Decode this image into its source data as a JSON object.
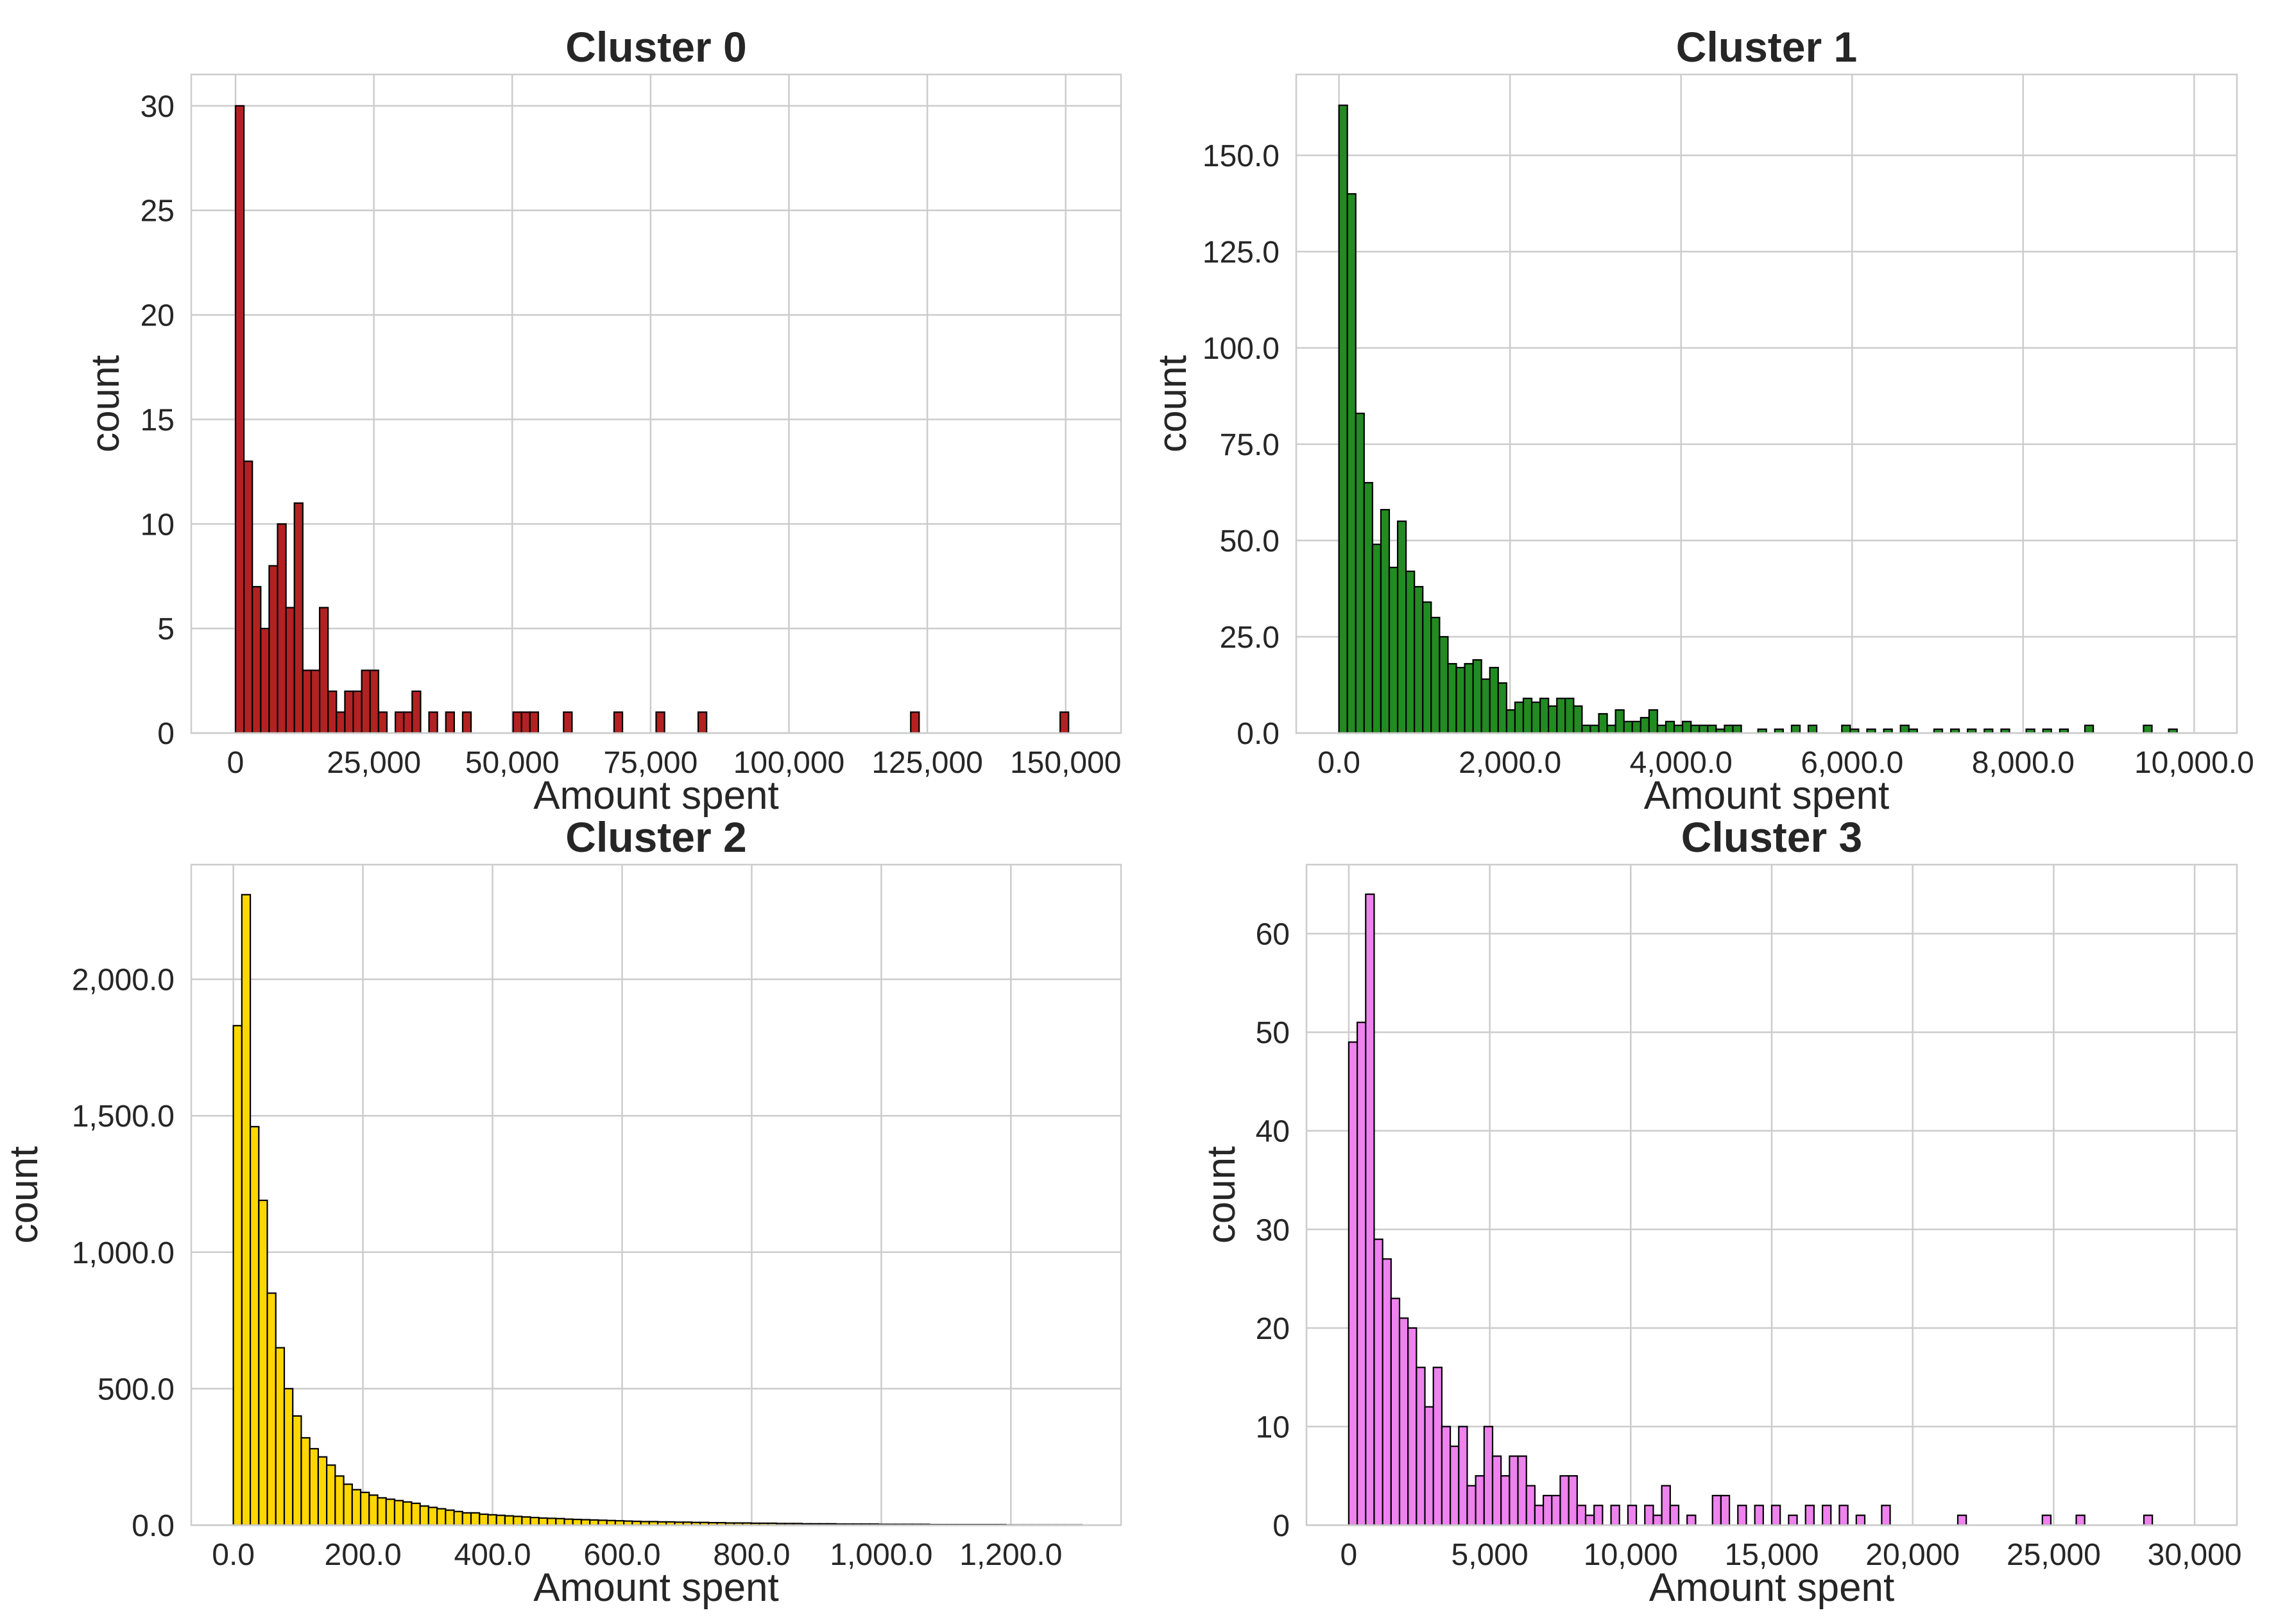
{
  "chart_data": [
    {
      "type": "bar",
      "title": "Cluster 0",
      "xlabel": "Amount spent",
      "ylabel": "count",
      "color": "#b22222",
      "xlim": [
        -8000,
        160000
      ],
      "ylim": [
        0,
        31.5
      ],
      "bin_start": 0,
      "bin_width": 1520,
      "values": [
        30,
        13,
        7,
        5,
        8,
        10,
        6,
        11,
        3,
        3,
        6,
        2,
        1,
        2,
        2,
        3,
        3,
        1,
        0,
        1,
        1,
        2,
        0,
        1,
        0,
        1,
        0,
        1,
        0,
        0,
        0,
        0,
        0,
        1,
        1,
        1,
        0,
        0,
        0,
        0,
        1,
        0,
        0,
        0,
        0,
        0,
        0,
        0,
        0,
        0,
        0,
        0,
        1,
        0,
        0,
        0,
        0,
        0,
        0,
        0,
        0,
        0,
        0,
        0,
        0,
        0,
        0,
        0,
        0,
        0,
        0,
        0,
        0,
        0,
        0,
        0,
        0,
        0,
        0,
        0,
        0,
        0,
        0,
        0,
        0,
        0,
        0,
        0,
        0,
        0,
        0,
        0,
        0,
        0,
        0,
        0,
        0,
        0,
        0,
        1
      ],
      "bars": [
        {
          "x": 0,
          "v": 30
        },
        {
          "x": 1520,
          "v": 13
        },
        {
          "x": 3040,
          "v": 7
        },
        {
          "x": 4560,
          "v": 5
        },
        {
          "x": 6080,
          "v": 8
        },
        {
          "x": 7600,
          "v": 10
        },
        {
          "x": 9120,
          "v": 6
        },
        {
          "x": 10640,
          "v": 11
        },
        {
          "x": 12160,
          "v": 3
        },
        {
          "x": 13680,
          "v": 3
        },
        {
          "x": 15200,
          "v": 6
        },
        {
          "x": 16720,
          "v": 2
        },
        {
          "x": 18240,
          "v": 1
        },
        {
          "x": 19760,
          "v": 2
        },
        {
          "x": 21280,
          "v": 2
        },
        {
          "x": 22800,
          "v": 3
        },
        {
          "x": 24320,
          "v": 3
        },
        {
          "x": 25840,
          "v": 1
        },
        {
          "x": 28880,
          "v": 1
        },
        {
          "x": 30400,
          "v": 1
        },
        {
          "x": 31920,
          "v": 2
        },
        {
          "x": 34960,
          "v": 1
        },
        {
          "x": 38000,
          "v": 1
        },
        {
          "x": 41040,
          "v": 1
        },
        {
          "x": 50160,
          "v": 1
        },
        {
          "x": 51680,
          "v": 1
        },
        {
          "x": 53200,
          "v": 1
        },
        {
          "x": 59280,
          "v": 1
        },
        {
          "x": 68400,
          "v": 1
        },
        {
          "x": 76000,
          "v": 1
        },
        {
          "x": 83600,
          "v": 1
        },
        {
          "x": 122000,
          "v": 1
        },
        {
          "x": 149000,
          "v": 1
        }
      ],
      "xticks": [
        0,
        25000,
        50000,
        75000,
        100000,
        125000,
        150000
      ],
      "xtick_labels": [
        "0",
        "25,000",
        "50,000",
        "75,000",
        "100,000",
        "125,000",
        "150,000"
      ],
      "yticks": [
        0,
        5,
        10,
        15,
        20,
        25,
        30
      ],
      "ytick_labels": [
        "0",
        "5",
        "10",
        "15",
        "20",
        "25",
        "30"
      ],
      "grid": true
    },
    {
      "type": "bar",
      "title": "Cluster 1",
      "xlabel": "Amount spent",
      "ylabel": "count",
      "color": "#228b22",
      "xlim": [
        -500,
        10500
      ],
      "ylim": [
        0,
        171
      ],
      "bin_start": 0,
      "bin_width": 98,
      "bars": [
        {
          "x": 0,
          "v": 163
        },
        {
          "x": 98,
          "v": 140
        },
        {
          "x": 196,
          "v": 83
        },
        {
          "x": 294,
          "v": 65
        },
        {
          "x": 392,
          "v": 49
        },
        {
          "x": 490,
          "v": 58
        },
        {
          "x": 588,
          "v": 43
        },
        {
          "x": 686,
          "v": 55
        },
        {
          "x": 784,
          "v": 42
        },
        {
          "x": 882,
          "v": 38
        },
        {
          "x": 980,
          "v": 34
        },
        {
          "x": 1078,
          "v": 30
        },
        {
          "x": 1176,
          "v": 25
        },
        {
          "x": 1274,
          "v": 18
        },
        {
          "x": 1372,
          "v": 17
        },
        {
          "x": 1470,
          "v": 18
        },
        {
          "x": 1568,
          "v": 19
        },
        {
          "x": 1666,
          "v": 14
        },
        {
          "x": 1764,
          "v": 17
        },
        {
          "x": 1862,
          "v": 13
        },
        {
          "x": 1960,
          "v": 6
        },
        {
          "x": 2058,
          "v": 8
        },
        {
          "x": 2156,
          "v": 9
        },
        {
          "x": 2254,
          "v": 8
        },
        {
          "x": 2352,
          "v": 9
        },
        {
          "x": 2450,
          "v": 7
        },
        {
          "x": 2548,
          "v": 9
        },
        {
          "x": 2646,
          "v": 9
        },
        {
          "x": 2744,
          "v": 7
        },
        {
          "x": 2842,
          "v": 2
        },
        {
          "x": 2940,
          "v": 2
        },
        {
          "x": 3038,
          "v": 5
        },
        {
          "x": 3136,
          "v": 2
        },
        {
          "x": 3234,
          "v": 6
        },
        {
          "x": 3332,
          "v": 3
        },
        {
          "x": 3430,
          "v": 3
        },
        {
          "x": 3528,
          "v": 4
        },
        {
          "x": 3626,
          "v": 6
        },
        {
          "x": 3724,
          "v": 2
        },
        {
          "x": 3822,
          "v": 3
        },
        {
          "x": 3920,
          "v": 2
        },
        {
          "x": 4018,
          "v": 3
        },
        {
          "x": 4116,
          "v": 2
        },
        {
          "x": 4214,
          "v": 2
        },
        {
          "x": 4312,
          "v": 2
        },
        {
          "x": 4410,
          "v": 1
        },
        {
          "x": 4508,
          "v": 2
        },
        {
          "x": 4606,
          "v": 2
        },
        {
          "x": 4900,
          "v": 1
        },
        {
          "x": 5096,
          "v": 1
        },
        {
          "x": 5292,
          "v": 2
        },
        {
          "x": 5488,
          "v": 2
        },
        {
          "x": 5880,
          "v": 2
        },
        {
          "x": 5978,
          "v": 1
        },
        {
          "x": 6174,
          "v": 1
        },
        {
          "x": 6370,
          "v": 1
        },
        {
          "x": 6566,
          "v": 2
        },
        {
          "x": 6664,
          "v": 1
        },
        {
          "x": 6958,
          "v": 1
        },
        {
          "x": 7154,
          "v": 1
        },
        {
          "x": 7350,
          "v": 1
        },
        {
          "x": 7546,
          "v": 1
        },
        {
          "x": 7742,
          "v": 1
        },
        {
          "x": 8036,
          "v": 1
        },
        {
          "x": 8232,
          "v": 1
        },
        {
          "x": 8428,
          "v": 1
        },
        {
          "x": 8722,
          "v": 2
        },
        {
          "x": 9408,
          "v": 2
        },
        {
          "x": 9702,
          "v": 1
        }
      ],
      "xticks": [
        0,
        2000,
        4000,
        6000,
        8000,
        10000
      ],
      "xtick_labels": [
        "0.0",
        "2,000.0",
        "4,000.0",
        "6,000.0",
        "8,000.0",
        "10,000.0"
      ],
      "yticks": [
        0,
        25,
        50,
        75,
        100,
        125,
        150
      ],
      "ytick_labels": [
        "0.0",
        "25.0",
        "50.0",
        "75.0",
        "100.0",
        "125.0",
        "150.0"
      ],
      "grid": true
    },
    {
      "type": "bar",
      "title": "Cluster 2",
      "xlabel": "Amount spent",
      "ylabel": "count",
      "color": "#ffd700",
      "xlim": [
        -65,
        1370
      ],
      "ylim": [
        0,
        2420
      ],
      "bin_start": 0,
      "bin_width": 13.1,
      "values": [
        1830,
        2310,
        1460,
        1190,
        850,
        650,
        500,
        400,
        320,
        280,
        250,
        220,
        180,
        150,
        130,
        120,
        110,
        100,
        95,
        90,
        85,
        80,
        70,
        65,
        60,
        55,
        50,
        45,
        45,
        40,
        38,
        36,
        34,
        32,
        30,
        28,
        26,
        25,
        24,
        22,
        21,
        20,
        19,
        18,
        17,
        16,
        15,
        14,
        13,
        13,
        12,
        12,
        11,
        11,
        10,
        10,
        9,
        9,
        8,
        8,
        8,
        7,
        7,
        7,
        6,
        6,
        6,
        5,
        5,
        5,
        5,
        4,
        4,
        4,
        4,
        4,
        3,
        3,
        3,
        3,
        3,
        3,
        2,
        2,
        2,
        2,
        2,
        2,
        2,
        2,
        2,
        1,
        1,
        1,
        1,
        1,
        1,
        1,
        1,
        1
      ]
    },
    {
      "type": "bar",
      "title": "Cluster 3",
      "xlabel": "Amount spent",
      "ylabel": "count",
      "color": "#ee82ee",
      "xlim": [
        -1500,
        31500
      ],
      "ylim": [
        0,
        67
      ],
      "bin_start": 0,
      "bin_width": 300,
      "bars": [
        {
          "x": 0,
          "v": 49
        },
        {
          "x": 300,
          "v": 51
        },
        {
          "x": 600,
          "v": 64
        },
        {
          "x": 900,
          "v": 29
        },
        {
          "x": 1200,
          "v": 27
        },
        {
          "x": 1500,
          "v": 23
        },
        {
          "x": 1800,
          "v": 21
        },
        {
          "x": 2100,
          "v": 20
        },
        {
          "x": 2400,
          "v": 16
        },
        {
          "x": 2700,
          "v": 12
        },
        {
          "x": 3000,
          "v": 16
        },
        {
          "x": 3300,
          "v": 10
        },
        {
          "x": 3600,
          "v": 8
        },
        {
          "x": 3900,
          "v": 10
        },
        {
          "x": 4200,
          "v": 4
        },
        {
          "x": 4500,
          "v": 5
        },
        {
          "x": 4800,
          "v": 10
        },
        {
          "x": 5100,
          "v": 7
        },
        {
          "x": 5400,
          "v": 5
        },
        {
          "x": 5700,
          "v": 7
        },
        {
          "x": 6000,
          "v": 7
        },
        {
          "x": 6300,
          "v": 4
        },
        {
          "x": 6600,
          "v": 2
        },
        {
          "x": 6900,
          "v": 3
        },
        {
          "x": 7200,
          "v": 3
        },
        {
          "x": 7500,
          "v": 5
        },
        {
          "x": 7800,
          "v": 5
        },
        {
          "x": 8100,
          "v": 2
        },
        {
          "x": 8400,
          "v": 1
        },
        {
          "x": 8700,
          "v": 2
        },
        {
          "x": 9300,
          "v": 2
        },
        {
          "x": 9900,
          "v": 2
        },
        {
          "x": 10500,
          "v": 2
        },
        {
          "x": 10800,
          "v": 1
        },
        {
          "x": 11100,
          "v": 4
        },
        {
          "x": 11400,
          "v": 2
        },
        {
          "x": 12000,
          "v": 1
        },
        {
          "x": 12900,
          "v": 3
        },
        {
          "x": 13200,
          "v": 3
        },
        {
          "x": 13800,
          "v": 2
        },
        {
          "x": 14400,
          "v": 2
        },
        {
          "x": 15000,
          "v": 2
        },
        {
          "x": 15600,
          "v": 1
        },
        {
          "x": 16200,
          "v": 2
        },
        {
          "x": 16800,
          "v": 2
        },
        {
          "x": 17400,
          "v": 2
        },
        {
          "x": 18000,
          "v": 1
        },
        {
          "x": 18900,
          "v": 2
        },
        {
          "x": 21600,
          "v": 1
        },
        {
          "x": 24600,
          "v": 1
        },
        {
          "x": 25800,
          "v": 1
        },
        {
          "x": 28200,
          "v": 1
        }
      ],
      "xticks": [
        0,
        5000,
        10000,
        15000,
        20000,
        25000,
        30000
      ],
      "xtick_labels": [
        "0",
        "5,000",
        "10,000",
        "15,000",
        "20,000",
        "25,000",
        "30,000"
      ],
      "yticks": [
        0,
        10,
        20,
        30,
        40,
        50,
        60
      ],
      "ytick_labels": [
        "0",
        "10",
        "20",
        "30",
        "40",
        "50",
        "60"
      ],
      "grid": true
    }
  ]
}
